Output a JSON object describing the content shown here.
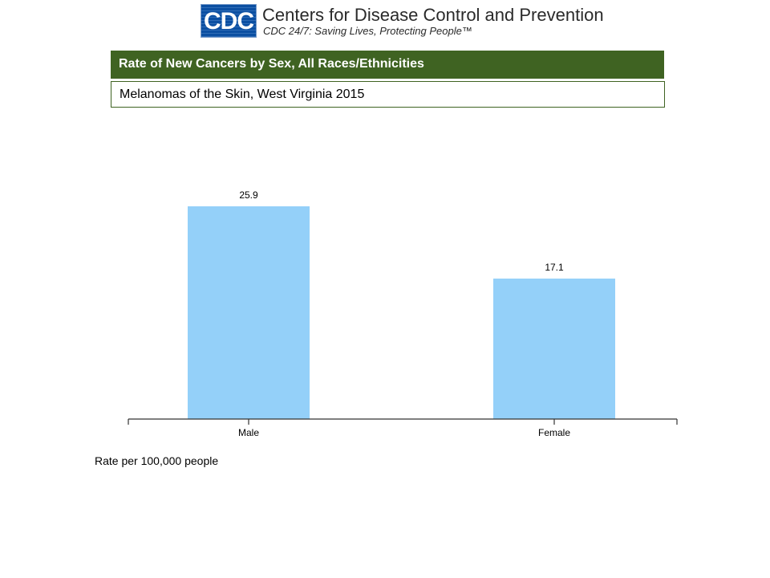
{
  "header": {
    "logo_text": "CDC",
    "org_name": "Centers for Disease Control and Prevention",
    "tagline": "CDC 24/7: Saving Lives, Protecting People™"
  },
  "title": "Rate of New Cancers by Sex, All Races/Ethnicities",
  "subtitle": "Melanomas of the Skin, West Virginia 2015",
  "footnote": "Rate per 100,000 people",
  "colors": {
    "title_bar": "#3f6322",
    "bar": "#94d0f9",
    "logo": "#0b4fa2"
  },
  "chart_data": {
    "type": "bar",
    "categories": [
      "Male",
      "Female"
    ],
    "values": [
      25.9,
      17.1
    ],
    "data_labels": [
      "25.9",
      "17.1"
    ],
    "title": "Rate of New Cancers by Sex, All Races/Ethnicities",
    "subtitle": "Melanomas of the Skin, West Virginia 2015",
    "xlabel": "",
    "ylabel": "",
    "ylim": [
      0,
      25.9
    ],
    "grid": false,
    "legend": "none"
  }
}
